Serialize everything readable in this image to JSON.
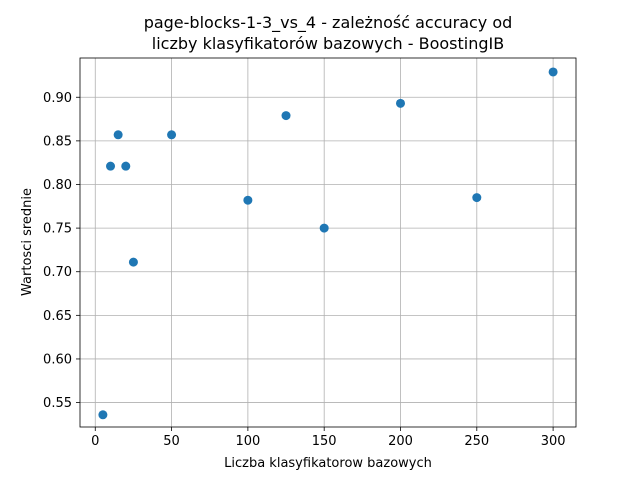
{
  "chart_data": {
    "type": "scatter",
    "title": [
      "page-blocks-1-3_vs_4 - zależność accuracy od",
      "liczby klasyfikatorów bazowych - BoostingIB"
    ],
    "xlabel": "Liczba klasyfikatorow bazowych",
    "ylabel": "Wartosci srednie",
    "xlim": [
      -10,
      315
    ],
    "ylim": [
      0.522,
      0.945
    ],
    "xticks": [
      0,
      50,
      100,
      150,
      200,
      250,
      300
    ],
    "yticks": [
      0.55,
      0.6,
      0.65,
      0.7,
      0.75,
      0.8,
      0.85,
      0.9
    ],
    "xtick_labels": [
      "0",
      "50",
      "100",
      "150",
      "200",
      "250",
      "300"
    ],
    "ytick_labels": [
      "0.55",
      "0.60",
      "0.65",
      "0.70",
      "0.75",
      "0.80",
      "0.85",
      "0.90"
    ],
    "grid": true,
    "color": "#1f77b4",
    "points": [
      {
        "x": 5,
        "y": 0.536
      },
      {
        "x": 10,
        "y": 0.821
      },
      {
        "x": 15,
        "y": 0.857
      },
      {
        "x": 20,
        "y": 0.821
      },
      {
        "x": 25,
        "y": 0.711
      },
      {
        "x": 50,
        "y": 0.857
      },
      {
        "x": 100,
        "y": 0.782
      },
      {
        "x": 125,
        "y": 0.879
      },
      {
        "x": 150,
        "y": 0.75
      },
      {
        "x": 200,
        "y": 0.893
      },
      {
        "x": 250,
        "y": 0.785
      },
      {
        "x": 300,
        "y": 0.929
      }
    ]
  }
}
